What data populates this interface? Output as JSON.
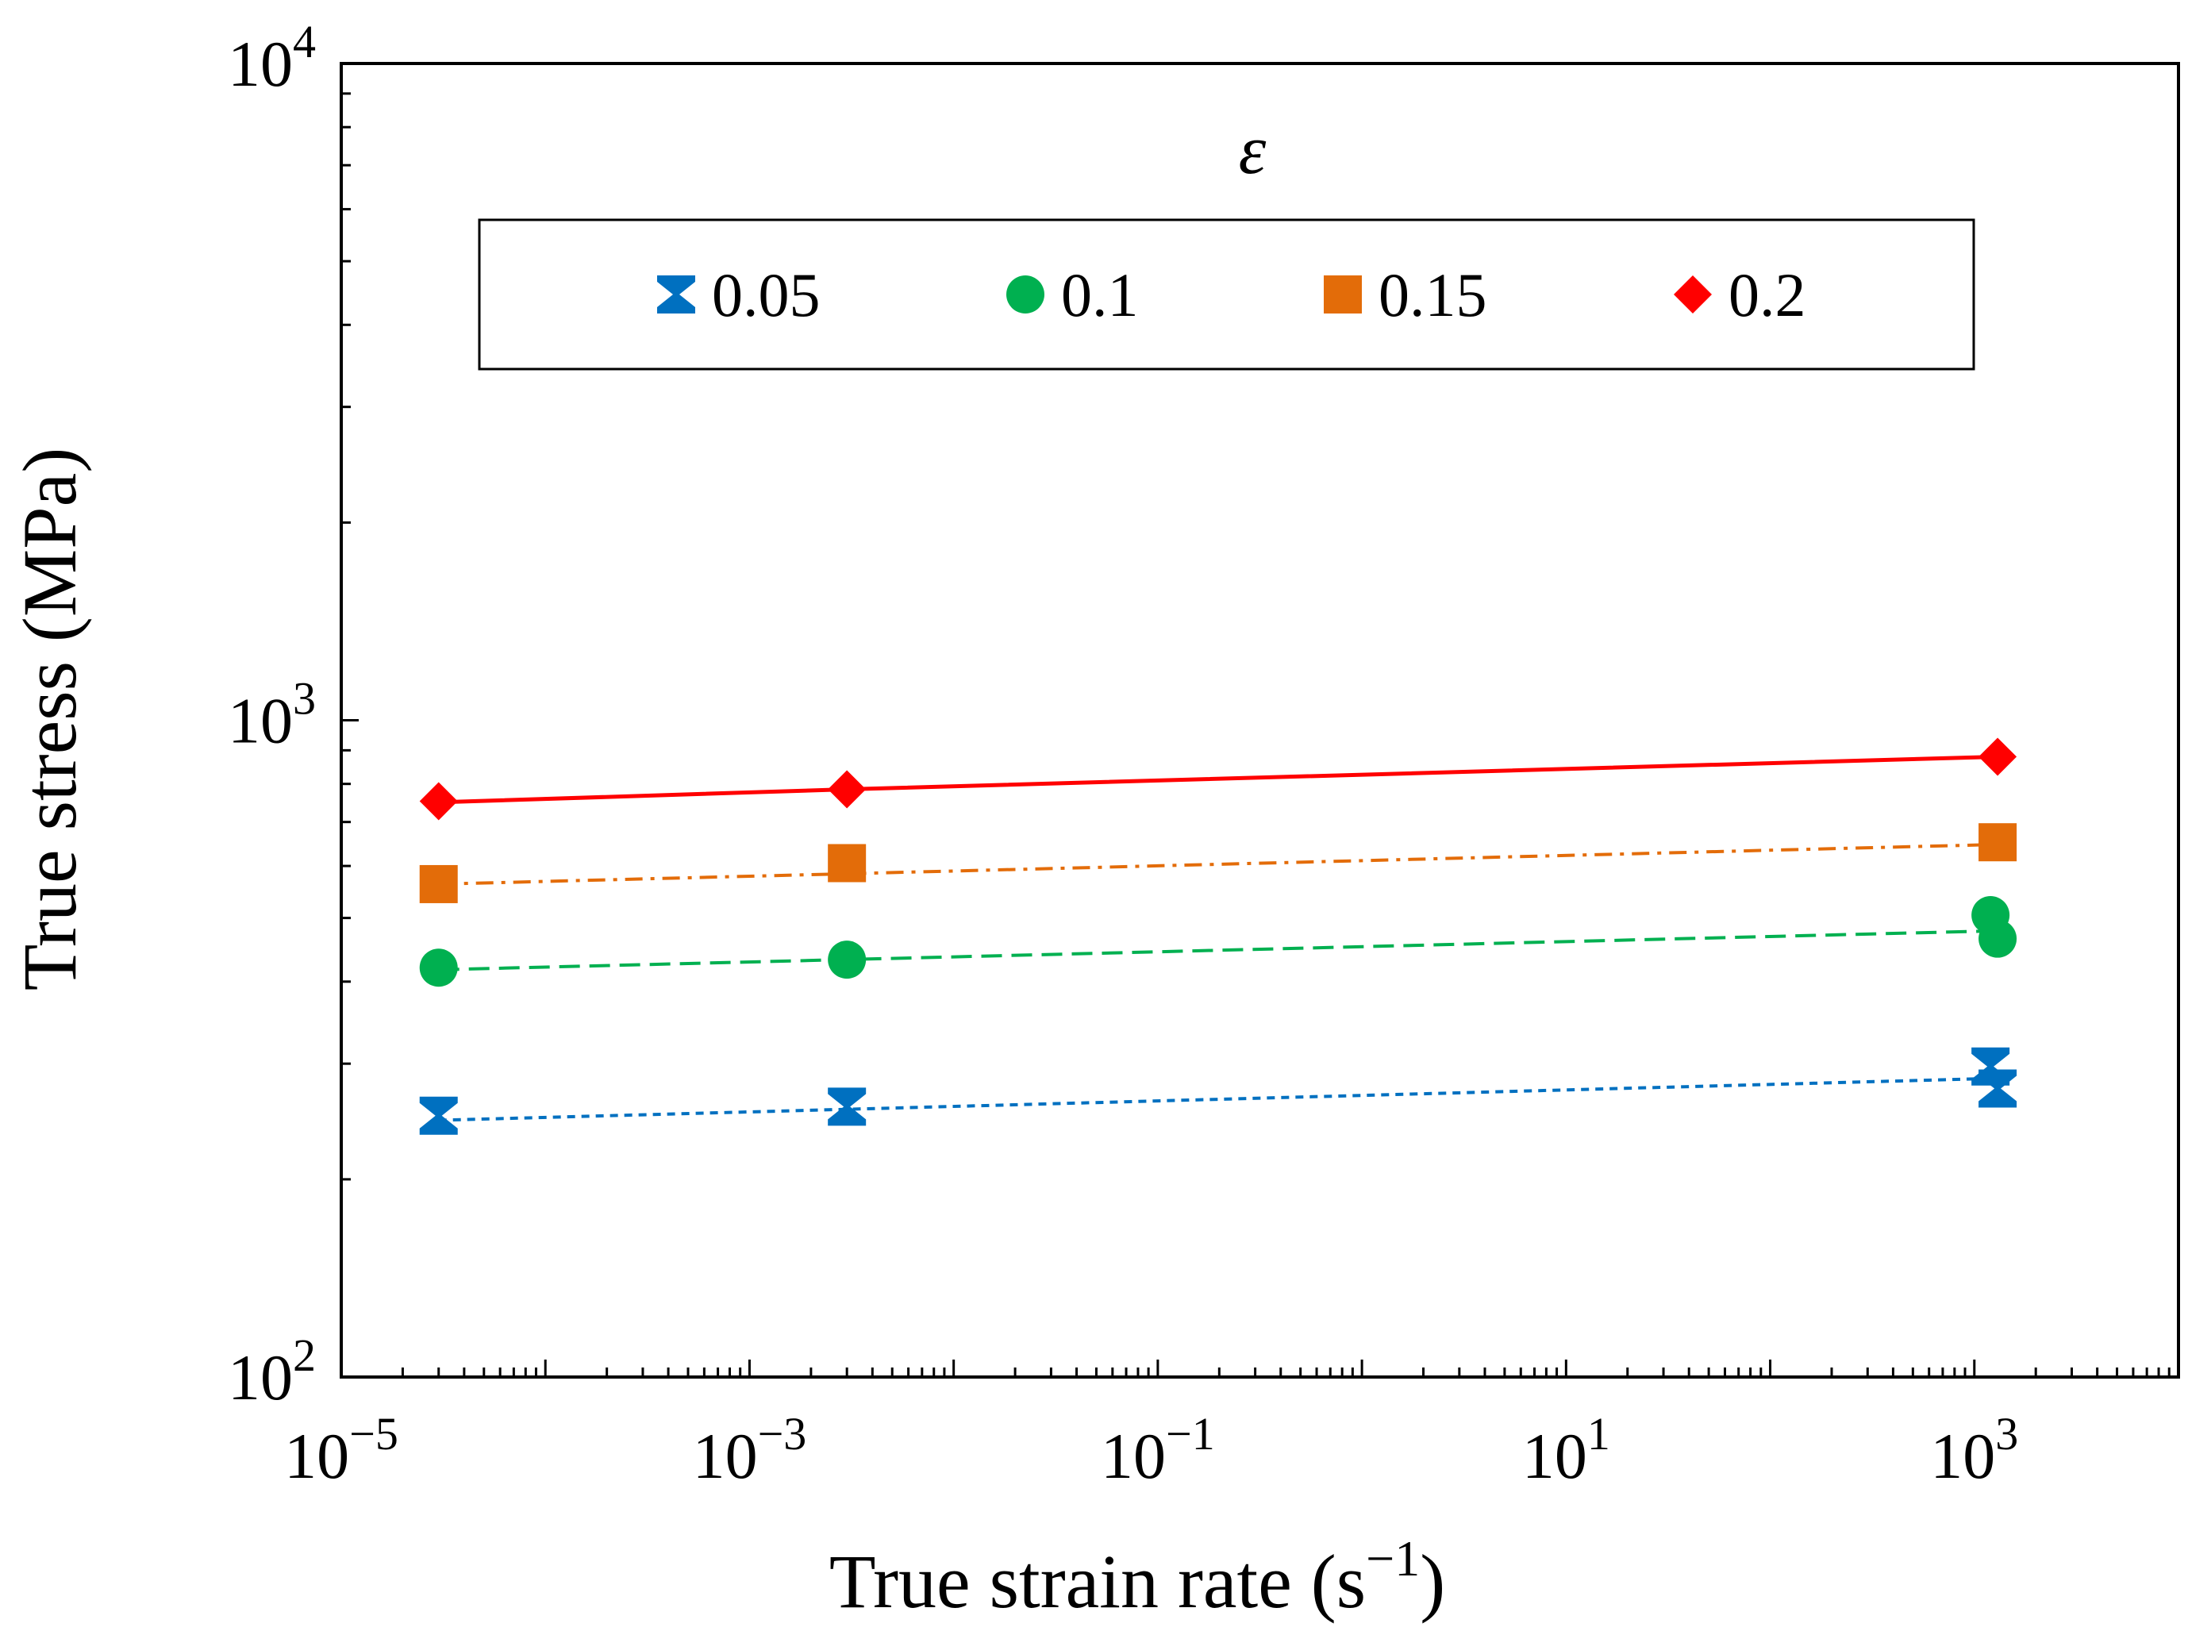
{
  "chart_data": {
    "type": "scatter",
    "title": "",
    "xlabel": "True strain rate (s",
    "xlabel_sup": "−1",
    "xlabel_close": ")",
    "ylabel": "True stress (MPa)",
    "xscale": "log",
    "yscale": "log",
    "xlim": [
      1e-05,
      10000
    ],
    "ylim": [
      100,
      10000
    ],
    "x_tick_labels": [
      {
        "value": 1e-05,
        "base": "10",
        "exp": "−5"
      },
      {
        "value": 0.001,
        "base": "10",
        "exp": "−3"
      },
      {
        "value": 0.1,
        "base": "10",
        "exp": "−1"
      },
      {
        "value": 10,
        "base": "10",
        "exp": "1"
      },
      {
        "value": 1000,
        "base": "10",
        "exp": "3"
      }
    ],
    "y_tick_labels": [
      {
        "value": 100,
        "base": "10",
        "exp": "2"
      },
      {
        "value": 1000,
        "base": "10",
        "exp": "3"
      },
      {
        "value": 10000,
        "base": "10",
        "exp": "4"
      }
    ],
    "legend_title": "ε",
    "legend_position": "top-center",
    "series": [
      {
        "name": "0.05",
        "marker": "hourglass",
        "color": "#0070C0",
        "line": "dotted",
        "points": [
          [
            3e-05,
            250
          ],
          [
            0.003,
            258
          ],
          [
            1200,
            297
          ],
          [
            1300,
            275
          ]
        ],
        "fit": [
          [
            3e-05,
            246
          ],
          [
            1300,
            285
          ]
        ]
      },
      {
        "name": "0.1",
        "marker": "circle",
        "color": "#00B050",
        "line": "dashed",
        "points": [
          [
            3e-05,
            420
          ],
          [
            0.003,
            432
          ],
          [
            1200,
            505
          ],
          [
            1300,
            465
          ]
        ],
        "fit": [
          [
            3e-05,
            417
          ],
          [
            1300,
            478
          ]
        ]
      },
      {
        "name": "0.15",
        "marker": "square",
        "color": "#E36C09",
        "line": "dashdot",
        "points": [
          [
            3e-05,
            563
          ],
          [
            0.003,
            606
          ],
          [
            1300,
            652
          ]
        ],
        "fit": [
          [
            3e-05,
            563
          ],
          [
            1300,
            647
          ]
        ]
      },
      {
        "name": "0.2",
        "marker": "diamond",
        "color": "#FF0000",
        "line": "solid",
        "points": [
          [
            3e-05,
            753
          ],
          [
            0.003,
            785
          ],
          [
            1300,
            880
          ]
        ],
        "fit": [
          [
            3e-05,
            750
          ],
          [
            0.003,
            785
          ],
          [
            1300,
            880
          ]
        ]
      }
    ]
  }
}
